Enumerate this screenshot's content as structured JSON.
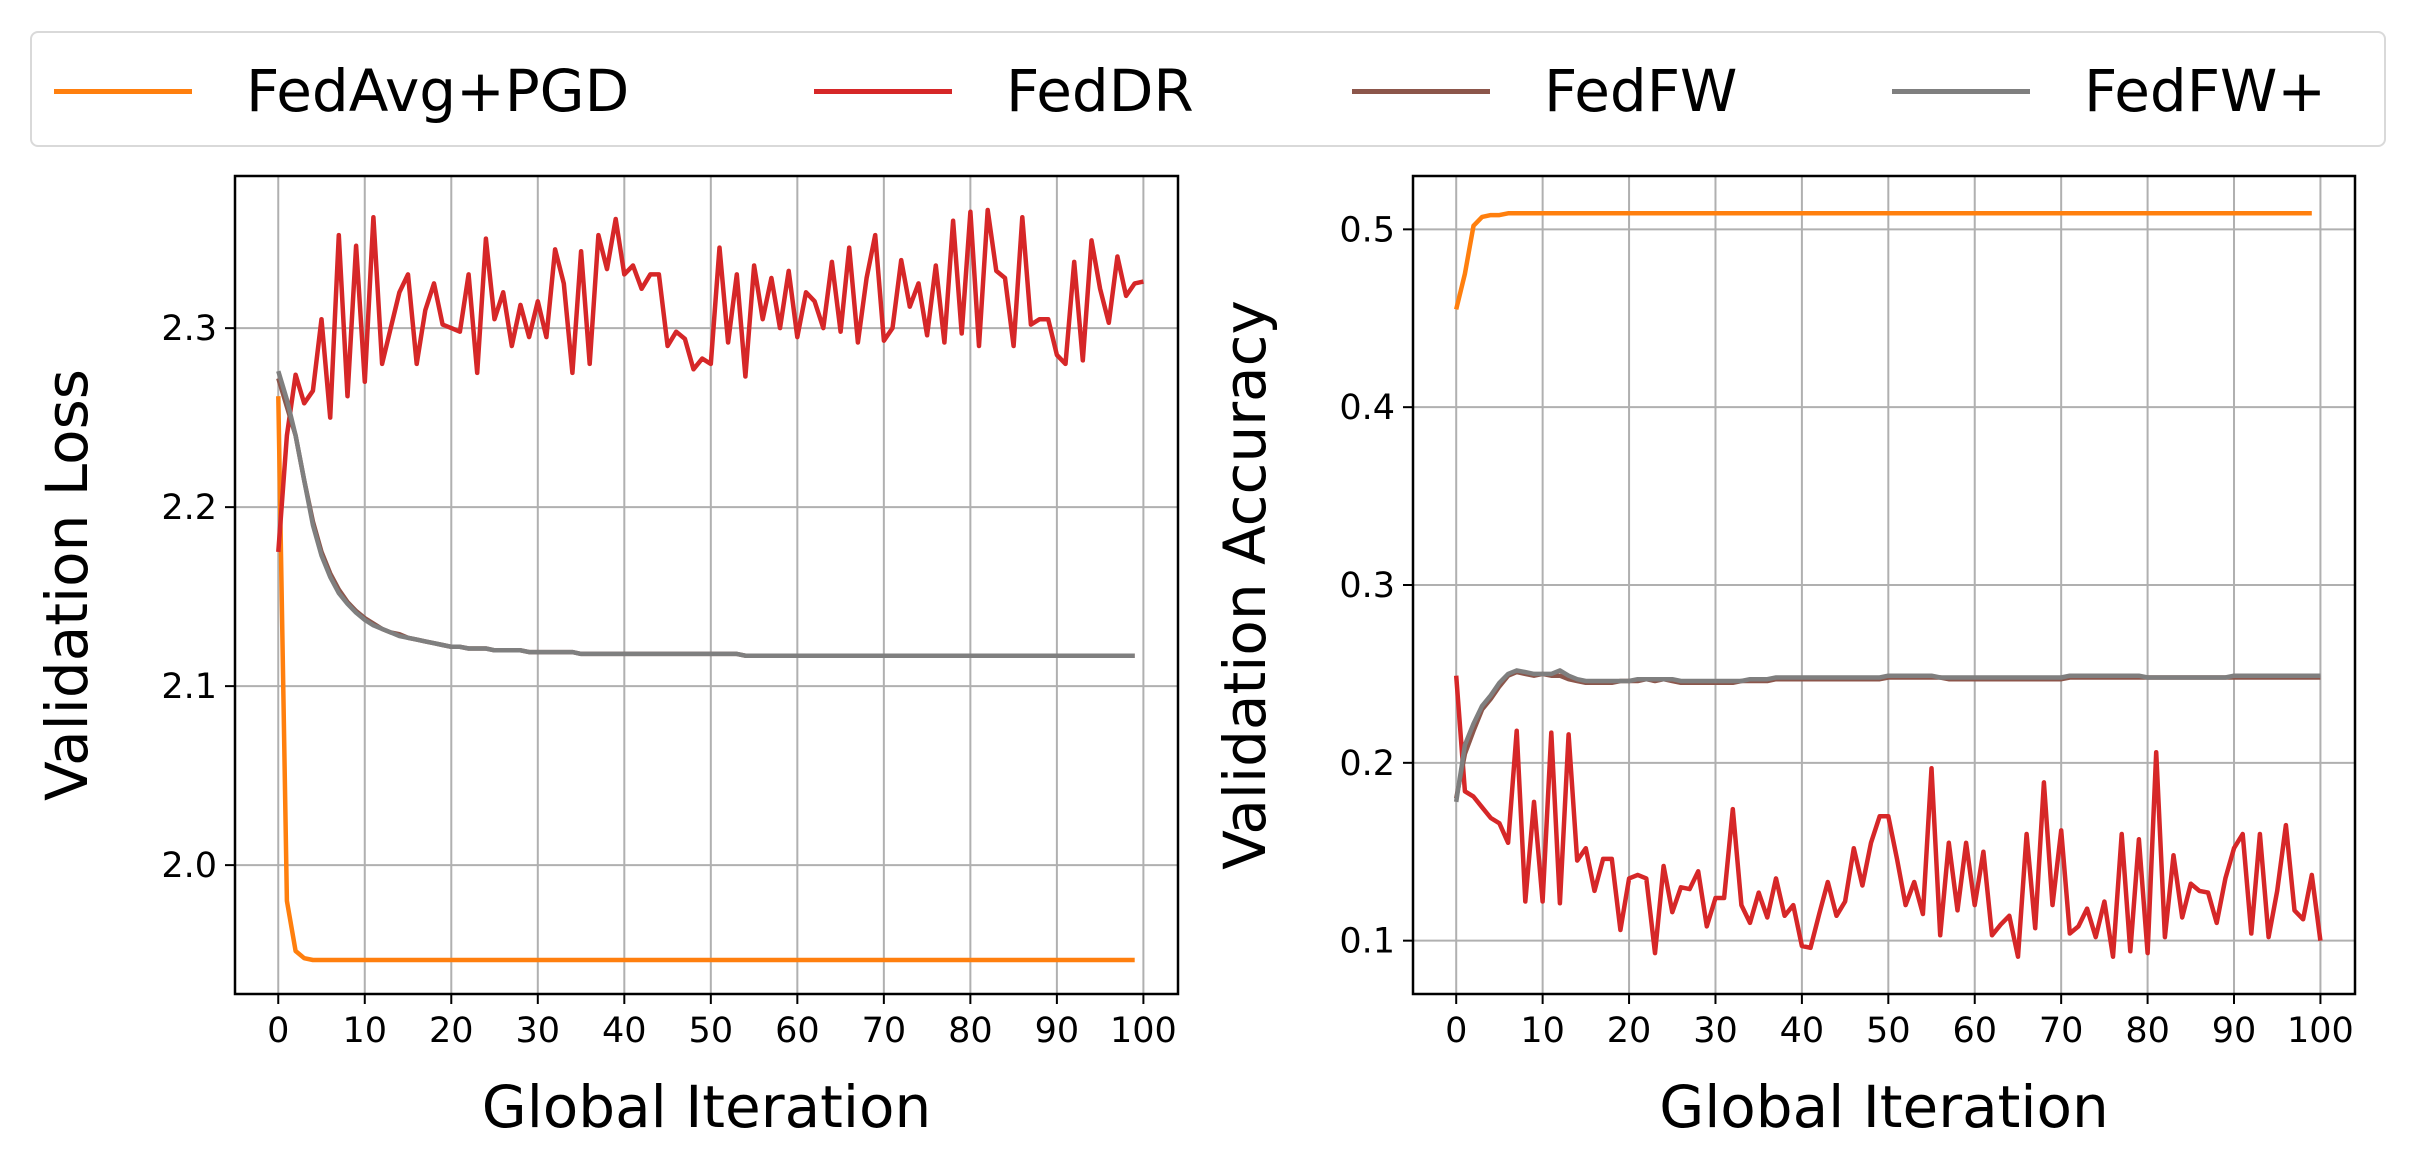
{
  "legend": {
    "placement": "top",
    "items": [
      {
        "label": "FedAvg+PGD",
        "color": "#ff7f0e"
      },
      {
        "label": "FedDR",
        "color": "#d62728"
      },
      {
        "label": "FedFW",
        "color": "#8c564b"
      },
      {
        "label": "FedFW+",
        "color": "#7f7f7f"
      }
    ]
  },
  "chart_data": [
    {
      "type": "line",
      "title": "",
      "xlabel": "Global Iteration",
      "ylabel": "Validation Loss",
      "xlim": [
        -5,
        104
      ],
      "ylim": [
        1.928,
        2.385
      ],
      "xticks": [
        0,
        10,
        20,
        30,
        40,
        50,
        60,
        70,
        80,
        90,
        100
      ],
      "yticks": [
        2.0,
        2.1,
        2.2,
        2.3
      ],
      "ytick_labels": [
        "2.0",
        "2.1",
        "2.2",
        "2.3"
      ],
      "grid": true,
      "series": [
        {
          "name": "FedAvg+PGD",
          "color": "#ff7f0e",
          "y": [
            2.262,
            1.98,
            1.952,
            1.948,
            1.947,
            1.947,
            1.947,
            1.947,
            1.947,
            1.947,
            1.947,
            1.947,
            1.947,
            1.947,
            1.947,
            1.947,
            1.947,
            1.947,
            1.947,
            1.947,
            1.947,
            1.947,
            1.947,
            1.947,
            1.947,
            1.947,
            1.947,
            1.947,
            1.947,
            1.947,
            1.947,
            1.947,
            1.947,
            1.947,
            1.947,
            1.947,
            1.947,
            1.947,
            1.947,
            1.947,
            1.947,
            1.947,
            1.947,
            1.947,
            1.947,
            1.947,
            1.947,
            1.947,
            1.947,
            1.947,
            1.947,
            1.947,
            1.947,
            1.947,
            1.947,
            1.947,
            1.947,
            1.947,
            1.947,
            1.947,
            1.947,
            1.947,
            1.947,
            1.947,
            1.947,
            1.947,
            1.947,
            1.947,
            1.947,
            1.947,
            1.947,
            1.947,
            1.947,
            1.947,
            1.947,
            1.947,
            1.947,
            1.947,
            1.947,
            1.947,
            1.947,
            1.947,
            1.947,
            1.947,
            1.947,
            1.947,
            1.947,
            1.947,
            1.947,
            1.947,
            1.947,
            1.947,
            1.947,
            1.947,
            1.947,
            1.947,
            1.947,
            1.947,
            1.947,
            1.947
          ]
        },
        {
          "name": "FedDR",
          "color": "#d62728",
          "y": [
            2.175,
            2.24,
            2.274,
            2.258,
            2.265,
            2.305,
            2.25,
            2.352,
            2.262,
            2.346,
            2.27,
            2.362,
            2.28,
            2.3,
            2.32,
            2.33,
            2.28,
            2.31,
            2.325,
            2.302,
            2.3,
            2.298,
            2.33,
            2.275,
            2.35,
            2.305,
            2.32,
            2.29,
            2.313,
            2.295,
            2.315,
            2.295,
            2.344,
            2.325,
            2.275,
            2.343,
            2.28,
            2.352,
            2.333,
            2.361,
            2.33,
            2.335,
            2.322,
            2.33,
            2.33,
            2.29,
            2.298,
            2.294,
            2.277,
            2.283,
            2.28,
            2.345,
            2.292,
            2.33,
            2.273,
            2.335,
            2.305,
            2.328,
            2.3,
            2.332,
            2.295,
            2.32,
            2.315,
            2.3,
            2.337,
            2.298,
            2.345,
            2.292,
            2.328,
            2.352,
            2.293,
            2.3,
            2.338,
            2.312,
            2.325,
            2.296,
            2.335,
            2.292,
            2.36,
            2.297,
            2.365,
            2.29,
            2.366,
            2.332,
            2.328,
            2.29,
            2.362,
            2.302,
            2.305,
            2.305,
            2.285,
            2.28,
            2.337,
            2.282,
            2.349,
            2.322,
            2.303,
            2.34,
            2.318,
            2.325,
            2.326
          ]
        },
        {
          "name": "FedFW",
          "color": "#8c564b",
          "y": [
            2.272,
            2.256,
            2.24,
            2.215,
            2.192,
            2.175,
            2.163,
            2.154,
            2.147,
            2.142,
            2.138,
            2.135,
            2.132,
            2.13,
            2.129,
            2.127,
            2.126,
            2.125,
            2.124,
            2.123,
            2.122,
            2.122,
            2.121,
            2.121,
            2.121,
            2.12,
            2.12,
            2.12,
            2.12,
            2.119,
            2.119,
            2.119,
            2.119,
            2.119,
            2.119,
            2.118,
            2.118,
            2.118,
            2.118,
            2.118,
            2.118,
            2.118,
            2.118,
            2.118,
            2.118,
            2.118,
            2.118,
            2.118,
            2.118,
            2.118,
            2.118,
            2.118,
            2.118,
            2.118,
            2.117,
            2.117,
            2.117,
            2.117,
            2.117,
            2.117,
            2.117,
            2.117,
            2.117,
            2.117,
            2.117,
            2.117,
            2.117,
            2.117,
            2.117,
            2.117,
            2.117,
            2.117,
            2.117,
            2.117,
            2.117,
            2.117,
            2.117,
            2.117,
            2.117,
            2.117,
            2.117,
            2.117,
            2.117,
            2.117,
            2.117,
            2.117,
            2.117,
            2.117,
            2.117,
            2.117,
            2.117,
            2.117,
            2.117,
            2.117,
            2.117,
            2.117,
            2.117,
            2.117,
            2.117,
            2.117
          ]
        },
        {
          "name": "FedFW+",
          "color": "#7f7f7f",
          "y": [
            2.276,
            2.26,
            2.24,
            2.215,
            2.19,
            2.173,
            2.161,
            2.152,
            2.146,
            2.141,
            2.137,
            2.134,
            2.132,
            2.13,
            2.128,
            2.127,
            2.126,
            2.125,
            2.124,
            2.123,
            2.122,
            2.122,
            2.121,
            2.121,
            2.121,
            2.12,
            2.12,
            2.12,
            2.12,
            2.119,
            2.119,
            2.119,
            2.119,
            2.119,
            2.119,
            2.118,
            2.118,
            2.118,
            2.118,
            2.118,
            2.118,
            2.118,
            2.118,
            2.118,
            2.118,
            2.118,
            2.118,
            2.118,
            2.118,
            2.118,
            2.118,
            2.118,
            2.118,
            2.118,
            2.117,
            2.117,
            2.117,
            2.117,
            2.117,
            2.117,
            2.117,
            2.117,
            2.117,
            2.117,
            2.117,
            2.117,
            2.117,
            2.117,
            2.117,
            2.117,
            2.117,
            2.117,
            2.117,
            2.117,
            2.117,
            2.117,
            2.117,
            2.117,
            2.117,
            2.117,
            2.117,
            2.117,
            2.117,
            2.117,
            2.117,
            2.117,
            2.117,
            2.117,
            2.117,
            2.117,
            2.117,
            2.117,
            2.117,
            2.117,
            2.117,
            2.117,
            2.117,
            2.117,
            2.117,
            2.117
          ]
        }
      ]
    },
    {
      "type": "line",
      "title": "",
      "xlabel": "Global Iteration",
      "ylabel": "Validation Accuracy",
      "xlim": [
        -5,
        104
      ],
      "ylim": [
        0.07,
        0.53
      ],
      "xticks": [
        0,
        10,
        20,
        30,
        40,
        50,
        60,
        70,
        80,
        90,
        100
      ],
      "yticks": [
        0.1,
        0.2,
        0.3,
        0.4,
        0.5
      ],
      "ytick_labels": [
        "0.1",
        "0.2",
        "0.3",
        "0.4",
        "0.5"
      ],
      "grid": true,
      "series": [
        {
          "name": "FedAvg+PGD",
          "color": "#ff7f0e",
          "y": [
            0.455,
            0.475,
            0.502,
            0.507,
            0.508,
            0.508,
            0.509,
            0.509,
            0.509,
            0.509,
            0.509,
            0.509,
            0.509,
            0.509,
            0.509,
            0.509,
            0.509,
            0.509,
            0.509,
            0.509,
            0.509,
            0.509,
            0.509,
            0.509,
            0.509,
            0.509,
            0.509,
            0.509,
            0.509,
            0.509,
            0.509,
            0.509,
            0.509,
            0.509,
            0.509,
            0.509,
            0.509,
            0.509,
            0.509,
            0.509,
            0.509,
            0.509,
            0.509,
            0.509,
            0.509,
            0.509,
            0.509,
            0.509,
            0.509,
            0.509,
            0.509,
            0.509,
            0.509,
            0.509,
            0.509,
            0.509,
            0.509,
            0.509,
            0.509,
            0.509,
            0.509,
            0.509,
            0.509,
            0.509,
            0.509,
            0.509,
            0.509,
            0.509,
            0.509,
            0.509,
            0.509,
            0.509,
            0.509,
            0.509,
            0.509,
            0.509,
            0.509,
            0.509,
            0.509,
            0.509,
            0.509,
            0.509,
            0.509,
            0.509,
            0.509,
            0.509,
            0.509,
            0.509,
            0.509,
            0.509,
            0.509,
            0.509,
            0.509,
            0.509,
            0.509,
            0.509,
            0.509,
            0.509,
            0.509,
            0.509
          ]
        },
        {
          "name": "FedDR",
          "color": "#d62728",
          "y": [
            0.249,
            0.184,
            0.181,
            0.175,
            0.169,
            0.166,
            0.155,
            0.218,
            0.122,
            0.178,
            0.122,
            0.217,
            0.121,
            0.216,
            0.145,
            0.152,
            0.128,
            0.146,
            0.146,
            0.106,
            0.135,
            0.137,
            0.135,
            0.093,
            0.142,
            0.116,
            0.13,
            0.129,
            0.139,
            0.108,
            0.124,
            0.124,
            0.174,
            0.12,
            0.11,
            0.127,
            0.113,
            0.135,
            0.114,
            0.12,
            0.097,
            0.096,
            0.115,
            0.133,
            0.114,
            0.122,
            0.152,
            0.131,
            0.155,
            0.17,
            0.17,
            0.146,
            0.12,
            0.133,
            0.115,
            0.197,
            0.103,
            0.155,
            0.117,
            0.155,
            0.12,
            0.15,
            0.103,
            0.109,
            0.114,
            0.091,
            0.16,
            0.107,
            0.189,
            0.12,
            0.162,
            0.104,
            0.108,
            0.118,
            0.102,
            0.122,
            0.091,
            0.16,
            0.094,
            0.157,
            0.093,
            0.206,
            0.102,
            0.148,
            0.113,
            0.132,
            0.128,
            0.127,
            0.11,
            0.135,
            0.152,
            0.16,
            0.104,
            0.16,
            0.102,
            0.128,
            0.165,
            0.117,
            0.112,
            0.137,
            0.1
          ]
        },
        {
          "name": "FedFW",
          "color": "#8c564b",
          "y": [
            0.18,
            0.205,
            0.218,
            0.23,
            0.236,
            0.243,
            0.249,
            0.251,
            0.25,
            0.249,
            0.25,
            0.249,
            0.249,
            0.247,
            0.246,
            0.245,
            0.245,
            0.245,
            0.245,
            0.246,
            0.246,
            0.246,
            0.247,
            0.246,
            0.247,
            0.246,
            0.245,
            0.245,
            0.245,
            0.245,
            0.245,
            0.245,
            0.245,
            0.246,
            0.246,
            0.246,
            0.246,
            0.247,
            0.247,
            0.247,
            0.247,
            0.247,
            0.247,
            0.247,
            0.247,
            0.247,
            0.247,
            0.247,
            0.247,
            0.247,
            0.248,
            0.248,
            0.248,
            0.248,
            0.248,
            0.248,
            0.248,
            0.247,
            0.247,
            0.247,
            0.247,
            0.247,
            0.247,
            0.247,
            0.247,
            0.247,
            0.247,
            0.247,
            0.247,
            0.247,
            0.247,
            0.248,
            0.248,
            0.248,
            0.248,
            0.248,
            0.248,
            0.248,
            0.248,
            0.248,
            0.248,
            0.248,
            0.248,
            0.248,
            0.248,
            0.248,
            0.248,
            0.248,
            0.248,
            0.248,
            0.248,
            0.248,
            0.248,
            0.248,
            0.248,
            0.248,
            0.248,
            0.248,
            0.248,
            0.248,
            0.248
          ]
        },
        {
          "name": "FedFW+",
          "color": "#7f7f7f",
          "y": [
            0.178,
            0.21,
            0.222,
            0.232,
            0.238,
            0.245,
            0.25,
            0.252,
            0.251,
            0.25,
            0.25,
            0.25,
            0.252,
            0.249,
            0.247,
            0.246,
            0.246,
            0.246,
            0.246,
            0.246,
            0.246,
            0.247,
            0.247,
            0.247,
            0.247,
            0.247,
            0.246,
            0.246,
            0.246,
            0.246,
            0.246,
            0.246,
            0.246,
            0.246,
            0.247,
            0.247,
            0.247,
            0.248,
            0.248,
            0.248,
            0.248,
            0.248,
            0.248,
            0.248,
            0.248,
            0.248,
            0.248,
            0.248,
            0.248,
            0.248,
            0.249,
            0.249,
            0.249,
            0.249,
            0.249,
            0.249,
            0.248,
            0.248,
            0.248,
            0.248,
            0.248,
            0.248,
            0.248,
            0.248,
            0.248,
            0.248,
            0.248,
            0.248,
            0.248,
            0.248,
            0.248,
            0.249,
            0.249,
            0.249,
            0.249,
            0.249,
            0.249,
            0.249,
            0.249,
            0.249,
            0.248,
            0.248,
            0.248,
            0.248,
            0.248,
            0.248,
            0.248,
            0.248,
            0.248,
            0.248,
            0.249,
            0.249,
            0.249,
            0.249,
            0.249,
            0.249,
            0.249,
            0.249,
            0.249,
            0.249,
            0.249
          ]
        }
      ]
    }
  ]
}
